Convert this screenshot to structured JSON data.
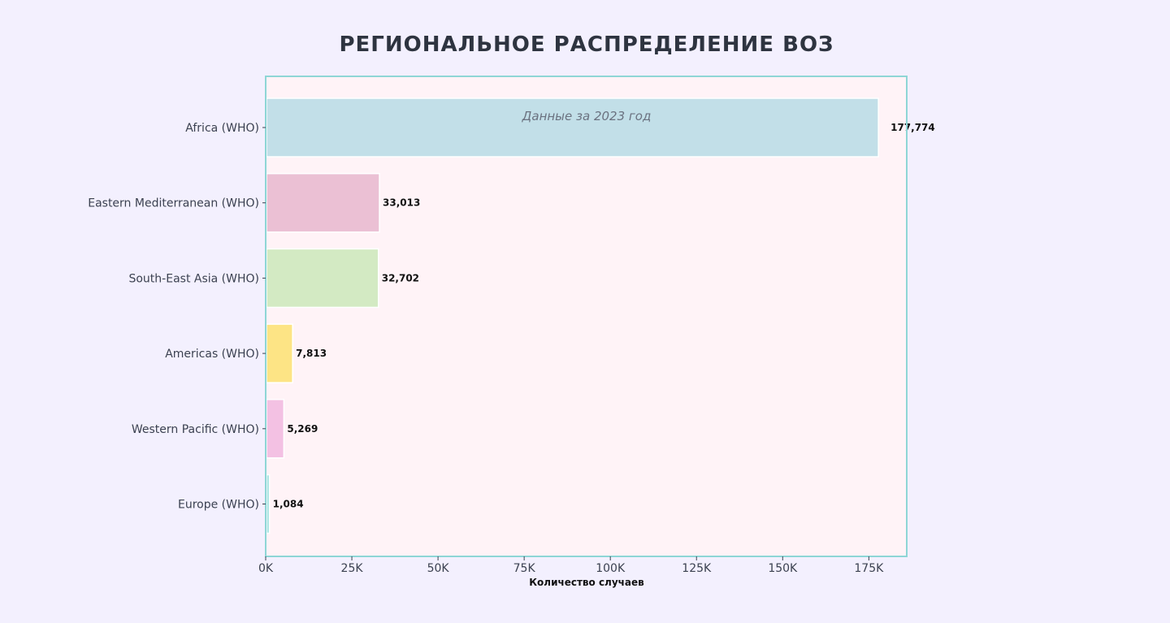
{
  "chart_data": {
    "type": "bar",
    "orientation": "horizontal",
    "title": "РЕГИОНАЛЬНОЕ РАСПРЕДЕЛЕНИЕ ВОЗ",
    "annotation": "Данные за 2023 год",
    "xlabel": "Количество случаев",
    "ylabel": "",
    "xlim": [
      0,
      186000
    ],
    "x_ticks": [
      0,
      25000,
      50000,
      75000,
      100000,
      125000,
      150000,
      175000
    ],
    "x_tick_labels": [
      "0K",
      "25K",
      "50K",
      "75K",
      "100K",
      "125K",
      "150K",
      "175K"
    ],
    "grid": false,
    "categories": [
      "Africa (WHO)",
      "Eastern Mediterranean (WHO)",
      "South-East Asia (WHO)",
      "Americas (WHO)",
      "Western Pacific (WHO)",
      "Europe (WHO)"
    ],
    "values": [
      177774,
      33013,
      32702,
      7813,
      5269,
      1084
    ],
    "value_labels": [
      "177,774",
      "33,013",
      "32,702",
      "7,813",
      "5,269",
      "1,084"
    ],
    "colors": [
      "#c2dfe8",
      "#ebc0d4",
      "#d3eac3",
      "#fde485",
      "#f3c1e3",
      "#a6e4e1"
    ],
    "plot_background": "#fff3f7",
    "frame_color": "#8ed6d6",
    "page_background": "#f3f0fe"
  }
}
